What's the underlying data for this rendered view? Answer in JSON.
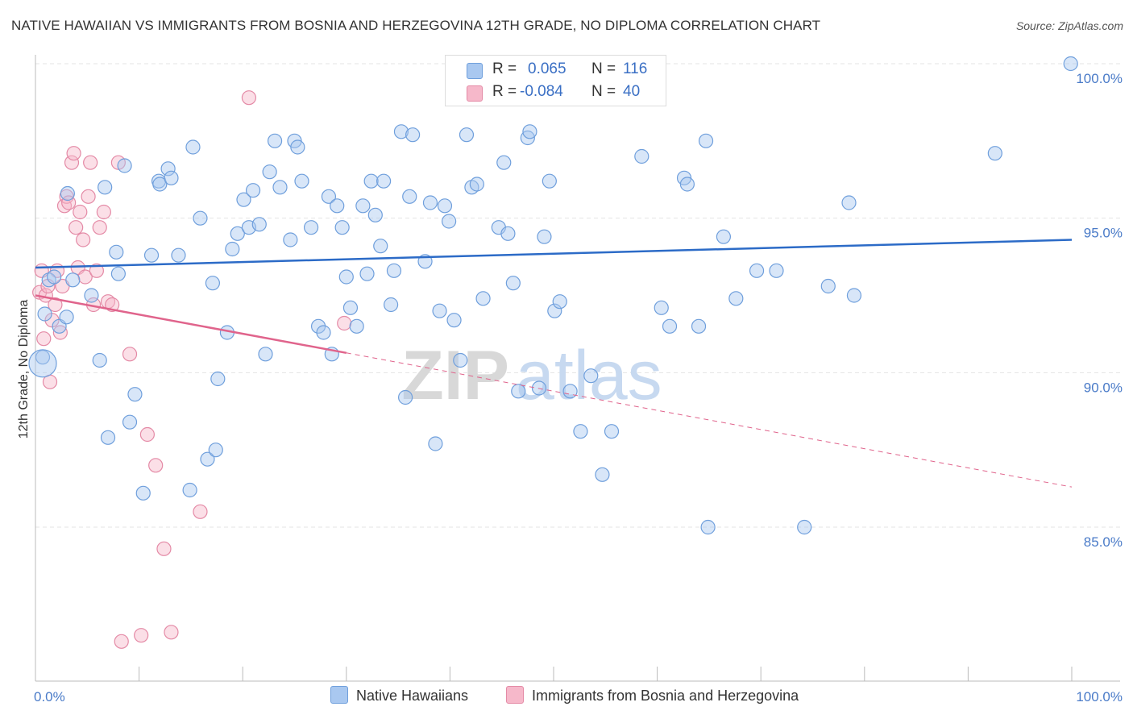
{
  "title": "NATIVE HAWAIIAN VS IMMIGRANTS FROM BOSNIA AND HERZEGOVINA 12TH GRADE, NO DIPLOMA CORRELATION CHART",
  "source": "Source: ZipAtlas.com",
  "watermark": {
    "zip": "ZIP",
    "atlas": "atlas"
  },
  "legend_stats": [
    {
      "r_label": "R =",
      "r_value": "0.065",
      "n_label": "N =",
      "n_value": "116",
      "color": "#a9c8f0"
    },
    {
      "r_label": "R =",
      "r_value": "-0.084",
      "n_label": "N =",
      "n_value": "40",
      "color": "#f6b8ca"
    }
  ],
  "colors": {
    "blue_fill": "#a9c8f0",
    "blue_stroke": "#6f9fdc",
    "blue_line": "#2c6bc7",
    "pink_fill": "#f6b8ca",
    "pink_stroke": "#e48aa6",
    "pink_line": "#e0648c",
    "tick_text": "#4a7bc8",
    "grid": "#e3e3e3"
  },
  "chart_data": {
    "type": "scatter",
    "title": "NATIVE HAWAIIAN VS IMMIGRANTS FROM BOSNIA AND HERZEGOVINA 12TH GRADE, NO DIPLOMA CORRELATION CHART",
    "xlabel": "",
    "ylabel": "12th Grade, No Diploma",
    "xlim": [
      0,
      100
    ],
    "ylim": [
      80,
      100
    ],
    "x_ticks": [
      "0.0%",
      "100.0%"
    ],
    "y_ticks": [
      {
        "value": 100,
        "label": "100.0%"
      },
      {
        "value": 95,
        "label": "95.0%"
      },
      {
        "value": 90,
        "label": "90.0%"
      },
      {
        "value": 85,
        "label": "85.0%"
      }
    ],
    "grid": true,
    "legend_position": "bottom",
    "series": [
      {
        "name": "Native Hawaiians",
        "trend": {
          "x": [
            0,
            100
          ],
          "y": [
            93.4,
            94.3
          ],
          "solid_to": 100
        },
        "points": [
          [
            0.7,
            90.5
          ],
          [
            0.9,
            91.9
          ],
          [
            1.3,
            93.0
          ],
          [
            1.8,
            93.1
          ],
          [
            2.3,
            91.5
          ],
          [
            3.0,
            91.8
          ],
          [
            3.1,
            95.8
          ],
          [
            3.6,
            93.0
          ],
          [
            5.4,
            92.5
          ],
          [
            6.2,
            90.4
          ],
          [
            6.7,
            96.0
          ],
          [
            7.0,
            87.9
          ],
          [
            8.0,
            93.2
          ],
          [
            7.8,
            93.9
          ],
          [
            8.6,
            96.7
          ],
          [
            9.1,
            88.4
          ],
          [
            9.6,
            89.3
          ],
          [
            10.4,
            86.1
          ],
          [
            11.2,
            93.8
          ],
          [
            11.9,
            96.2
          ],
          [
            12.0,
            96.1
          ],
          [
            12.8,
            96.6
          ],
          [
            13.1,
            96.3
          ],
          [
            13.8,
            93.8
          ],
          [
            14.9,
            86.2
          ],
          [
            15.2,
            97.3
          ],
          [
            15.9,
            95.0
          ],
          [
            16.6,
            87.2
          ],
          [
            17.1,
            92.9
          ],
          [
            17.4,
            87.5
          ],
          [
            17.6,
            89.8
          ],
          [
            18.5,
            91.3
          ],
          [
            19.0,
            94.0
          ],
          [
            19.5,
            94.5
          ],
          [
            20.1,
            95.6
          ],
          [
            20.6,
            94.7
          ],
          [
            21.0,
            95.9
          ],
          [
            21.6,
            94.8
          ],
          [
            22.2,
            90.6
          ],
          [
            22.6,
            96.5
          ],
          [
            23.1,
            97.5
          ],
          [
            23.6,
            96.0
          ],
          [
            24.6,
            94.3
          ],
          [
            25.0,
            97.5
          ],
          [
            25.3,
            97.3
          ],
          [
            25.7,
            96.2
          ],
          [
            26.6,
            94.7
          ],
          [
            27.3,
            91.5
          ],
          [
            27.8,
            91.3
          ],
          [
            28.3,
            95.7
          ],
          [
            28.6,
            90.6
          ],
          [
            29.1,
            95.4
          ],
          [
            29.6,
            94.7
          ],
          [
            30.0,
            93.1
          ],
          [
            30.4,
            92.1
          ],
          [
            31.0,
            91.5
          ],
          [
            31.6,
            95.4
          ],
          [
            32.0,
            93.2
          ],
          [
            32.4,
            96.2
          ],
          [
            32.8,
            95.1
          ],
          [
            33.3,
            94.1
          ],
          [
            33.6,
            96.2
          ],
          [
            34.3,
            92.2
          ],
          [
            34.6,
            93.3
          ],
          [
            35.3,
            97.8
          ],
          [
            35.7,
            89.2
          ],
          [
            36.1,
            95.7
          ],
          [
            36.4,
            97.7
          ],
          [
            37.6,
            93.6
          ],
          [
            38.1,
            95.5
          ],
          [
            38.6,
            87.7
          ],
          [
            39.0,
            92.0
          ],
          [
            39.5,
            95.4
          ],
          [
            39.9,
            94.9
          ],
          [
            40.4,
            91.7
          ],
          [
            41.0,
            90.4
          ],
          [
            41.6,
            97.7
          ],
          [
            42.1,
            96.0
          ],
          [
            42.6,
            96.1
          ],
          [
            43.2,
            92.4
          ],
          [
            44.7,
            94.7
          ],
          [
            45.2,
            96.8
          ],
          [
            45.6,
            94.5
          ],
          [
            46.1,
            92.9
          ],
          [
            46.6,
            89.4
          ],
          [
            47.5,
            97.6
          ],
          [
            47.7,
            97.8
          ],
          [
            48.6,
            89.5
          ],
          [
            49.1,
            94.4
          ],
          [
            49.6,
            96.2
          ],
          [
            50.1,
            92.0
          ],
          [
            50.6,
            92.3
          ],
          [
            51.6,
            89.4
          ],
          [
            52.6,
            88.1
          ],
          [
            53.6,
            89.9
          ],
          [
            54.7,
            86.7
          ],
          [
            55.6,
            88.1
          ],
          [
            56.3,
            100.0
          ],
          [
            57.4,
            100.0
          ],
          [
            58.5,
            97.0
          ],
          [
            60.4,
            92.1
          ],
          [
            61.2,
            91.5
          ],
          [
            62.6,
            96.3
          ],
          [
            62.9,
            96.1
          ],
          [
            64.0,
            91.5
          ],
          [
            64.7,
            97.5
          ],
          [
            64.9,
            85.0
          ],
          [
            66.4,
            94.4
          ],
          [
            67.6,
            92.4
          ],
          [
            69.6,
            93.3
          ],
          [
            71.5,
            93.3
          ],
          [
            74.2,
            85.0
          ],
          [
            76.5,
            92.8
          ],
          [
            78.5,
            95.5
          ],
          [
            79.0,
            92.5
          ],
          [
            92.6,
            97.1
          ],
          [
            99.9,
            100.0
          ],
          [
            44.4,
            100.0
          ]
        ]
      },
      {
        "name": "Immigrants from Bosnia and Herzegovina",
        "trend": {
          "x": [
            0,
            100
          ],
          "y": [
            92.5,
            86.3
          ],
          "solid_to": 30
        },
        "points": [
          [
            0.4,
            92.6
          ],
          [
            0.6,
            93.3
          ],
          [
            0.8,
            91.1
          ],
          [
            1.0,
            92.5
          ],
          [
            1.2,
            92.8
          ],
          [
            1.4,
            89.7
          ],
          [
            1.6,
            91.7
          ],
          [
            1.9,
            92.2
          ],
          [
            2.1,
            93.3
          ],
          [
            2.4,
            91.3
          ],
          [
            2.6,
            92.8
          ],
          [
            2.8,
            95.4
          ],
          [
            3.0,
            95.7
          ],
          [
            3.2,
            95.5
          ],
          [
            3.5,
            96.8
          ],
          [
            3.7,
            97.1
          ],
          [
            3.9,
            94.7
          ],
          [
            4.1,
            93.4
          ],
          [
            4.3,
            95.2
          ],
          [
            4.6,
            94.3
          ],
          [
            4.8,
            93.1
          ],
          [
            5.1,
            95.7
          ],
          [
            5.3,
            96.8
          ],
          [
            5.6,
            92.2
          ],
          [
            5.9,
            93.3
          ],
          [
            6.2,
            94.7
          ],
          [
            6.6,
            95.2
          ],
          [
            7.0,
            92.3
          ],
          [
            7.4,
            92.2
          ],
          [
            8.0,
            96.8
          ],
          [
            8.3,
            81.3
          ],
          [
            9.1,
            90.6
          ],
          [
            10.2,
            81.5
          ],
          [
            10.8,
            88.0
          ],
          [
            11.6,
            87.0
          ],
          [
            12.4,
            84.3
          ],
          [
            13.1,
            81.6
          ],
          [
            15.9,
            85.5
          ],
          [
            20.6,
            98.9
          ],
          [
            29.8,
            91.6
          ]
        ]
      }
    ]
  },
  "bottom_legend": [
    {
      "label": "Native Hawaiians",
      "color": "#a9c8f0"
    },
    {
      "label": "Immigrants from Bosnia and Herzegovina",
      "color": "#f6b8ca"
    }
  ]
}
